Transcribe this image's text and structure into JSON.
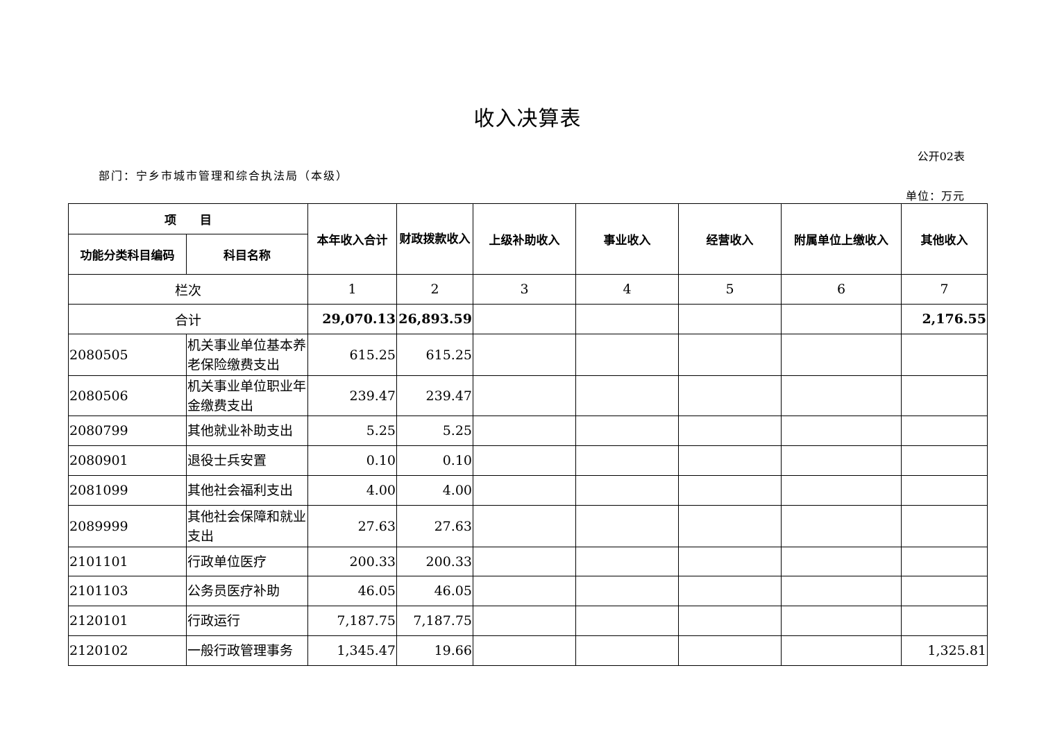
{
  "title": "收入决算表",
  "form_no": "公开02表",
  "department": "部门：宁乡市城市管理和综合执法局（本级）",
  "unit": "单位：万元",
  "header": {
    "item": "项　　目",
    "code": "功能分类科目编码",
    "name": "科目名称",
    "columns": [
      "本年收入合计",
      "财政拨款收入",
      "上级补助收入",
      "事业收入",
      "经营收入",
      "附属单位上缴收入",
      "其他收入"
    ]
  },
  "column_index": {
    "label": "栏次",
    "numbers": [
      "1",
      "2",
      "3",
      "4",
      "5",
      "6",
      "7"
    ]
  },
  "total": {
    "label": "合计",
    "values": [
      "29,070.13",
      "26,893.59",
      "",
      "",
      "",
      "",
      "2,176.55"
    ]
  },
  "rows": [
    {
      "code": "2080505",
      "name": "机关事业单位基本养老保险缴费支出",
      "values": [
        "615.25",
        "615.25",
        "",
        "",
        "",
        "",
        ""
      ]
    },
    {
      "code": "2080506",
      "name": "机关事业单位职业年金缴费支出",
      "values": [
        "239.47",
        "239.47",
        "",
        "",
        "",
        "",
        ""
      ]
    },
    {
      "code": "2080799",
      "name": "其他就业补助支出",
      "values": [
        "5.25",
        "5.25",
        "",
        "",
        "",
        "",
        ""
      ]
    },
    {
      "code": "2080901",
      "name": "退役士兵安置",
      "values": [
        "0.10",
        "0.10",
        "",
        "",
        "",
        "",
        ""
      ]
    },
    {
      "code": "2081099",
      "name": "其他社会福利支出",
      "values": [
        "4.00",
        "4.00",
        "",
        "",
        "",
        "",
        ""
      ]
    },
    {
      "code": "2089999",
      "name": "其他社会保障和就业支出",
      "values": [
        "27.63",
        "27.63",
        "",
        "",
        "",
        "",
        ""
      ]
    },
    {
      "code": "2101101",
      "name": "行政单位医疗",
      "values": [
        "200.33",
        "200.33",
        "",
        "",
        "",
        "",
        ""
      ]
    },
    {
      "code": "2101103",
      "name": "公务员医疗补助",
      "values": [
        "46.05",
        "46.05",
        "",
        "",
        "",
        "",
        ""
      ]
    },
    {
      "code": "2120101",
      "name": "行政运行",
      "values": [
        "7,187.75",
        "7,187.75",
        "",
        "",
        "",
        "",
        ""
      ]
    },
    {
      "code": "2120102",
      "name": "一般行政管理事务",
      "values": [
        "1,345.47",
        "19.66",
        "",
        "",
        "",
        "",
        "1,325.81"
      ]
    }
  ]
}
